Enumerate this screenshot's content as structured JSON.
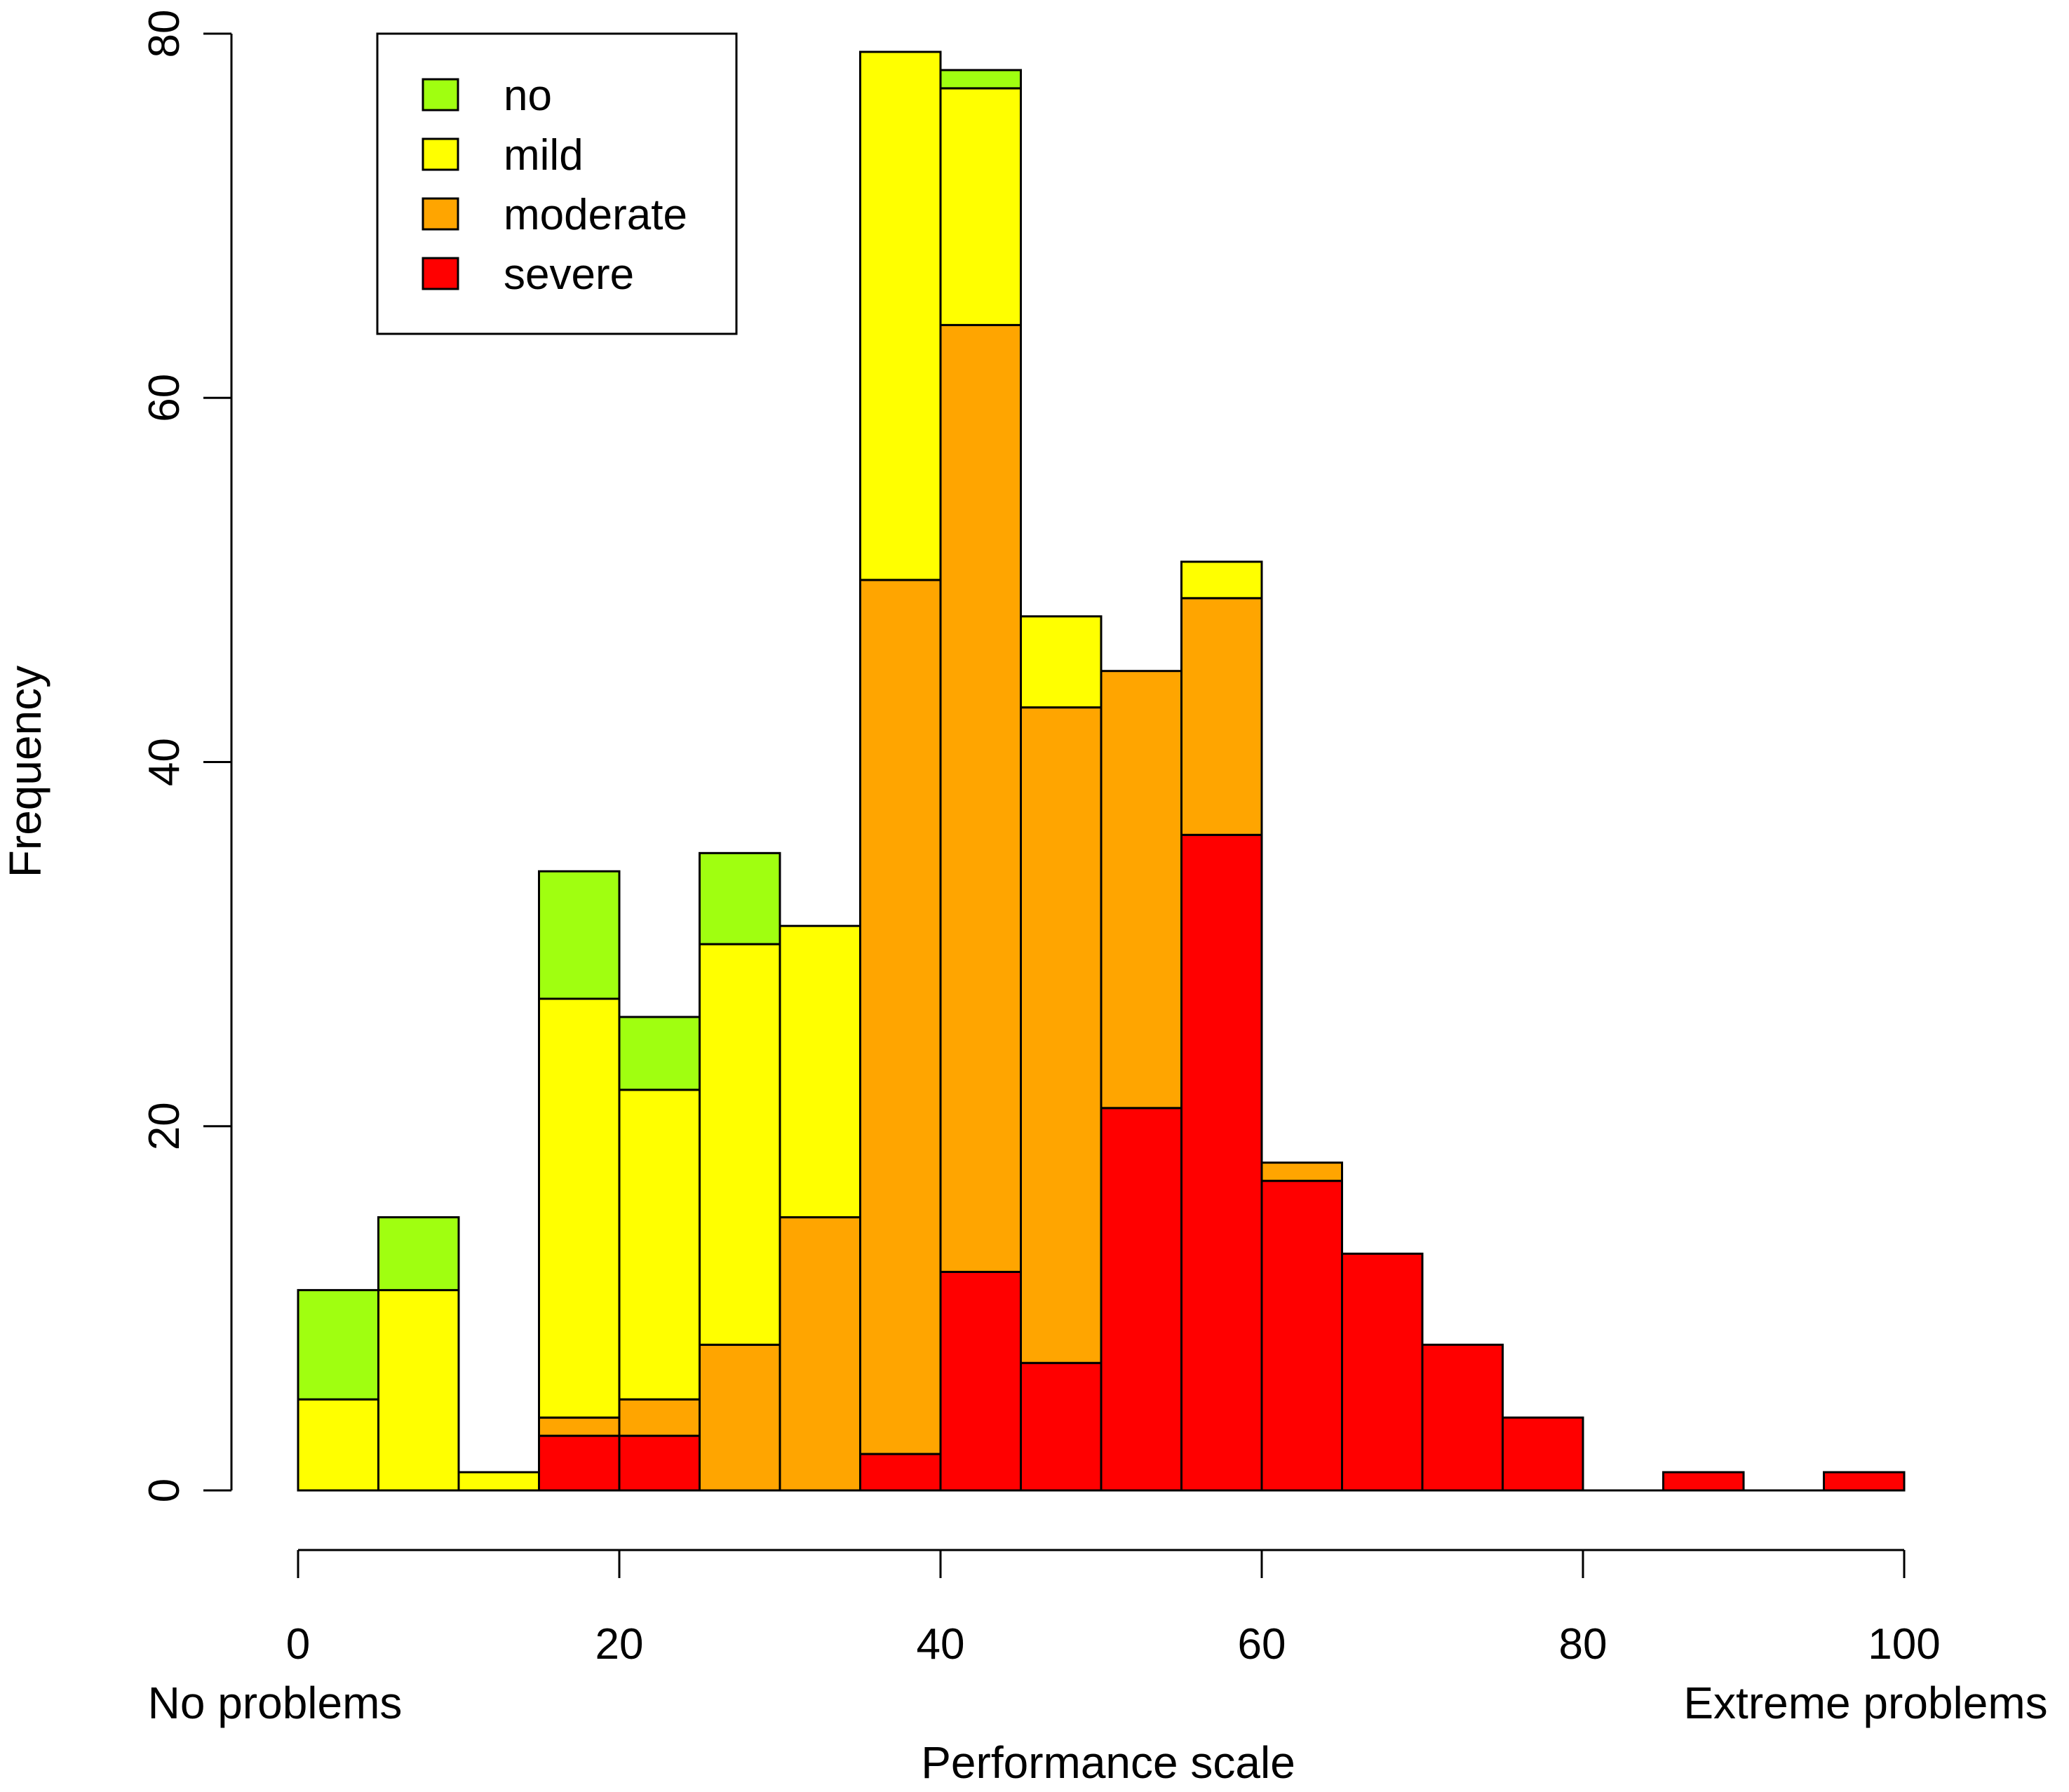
{
  "chart_data": {
    "type": "bar",
    "stacked": true,
    "bins": [
      [
        0,
        5
      ],
      [
        5,
        10
      ],
      [
        10,
        15
      ],
      [
        15,
        20
      ],
      [
        20,
        25
      ],
      [
        25,
        30
      ],
      [
        30,
        35
      ],
      [
        35,
        40
      ],
      [
        40,
        45
      ],
      [
        45,
        50
      ],
      [
        50,
        55
      ],
      [
        55,
        60
      ],
      [
        60,
        65
      ],
      [
        65,
        70
      ],
      [
        70,
        75
      ],
      [
        75,
        80
      ],
      [
        80,
        85
      ],
      [
        85,
        90
      ],
      [
        90,
        95
      ],
      [
        95,
        100
      ]
    ],
    "series": [
      {
        "name": "severe",
        "color": "#ff0000",
        "values": [
          0,
          0,
          0,
          3,
          3,
          0,
          0,
          2,
          12,
          7,
          21,
          36,
          17,
          13,
          8,
          4,
          0,
          1,
          0,
          1
        ]
      },
      {
        "name": "moderate",
        "color": "#ffa500",
        "values": [
          0,
          0,
          0,
          1,
          2,
          8,
          15,
          48,
          52,
          36,
          24,
          13,
          1,
          0,
          0,
          0,
          0,
          0,
          0,
          0
        ]
      },
      {
        "name": "mild",
        "color": "#ffff00",
        "values": [
          5,
          11,
          1,
          23,
          17,
          22,
          16,
          29,
          13,
          5,
          0,
          2,
          0,
          0,
          0,
          0,
          0,
          0,
          0,
          0
        ]
      },
      {
        "name": "no",
        "color": "#a0ff10",
        "values": [
          6,
          4,
          0,
          7,
          4,
          5,
          0,
          0,
          1,
          0,
          0,
          0,
          0,
          0,
          0,
          0,
          0,
          0,
          0,
          0
        ]
      }
    ],
    "legend_order": [
      "no",
      "mild",
      "moderate",
      "severe"
    ],
    "xlabel": "Performance scale",
    "ylabel": "Frequency",
    "x_low_label": "No problems",
    "x_high_label": "Extreme problems",
    "xlim": [
      0,
      100
    ],
    "ylim": [
      0,
      80
    ],
    "xticks": [
      "0",
      "20",
      "40",
      "60",
      "80",
      "100"
    ],
    "yticks": [
      "0",
      "20",
      "40",
      "60",
      "80"
    ],
    "grid": false,
    "legend_position": "top-left"
  }
}
